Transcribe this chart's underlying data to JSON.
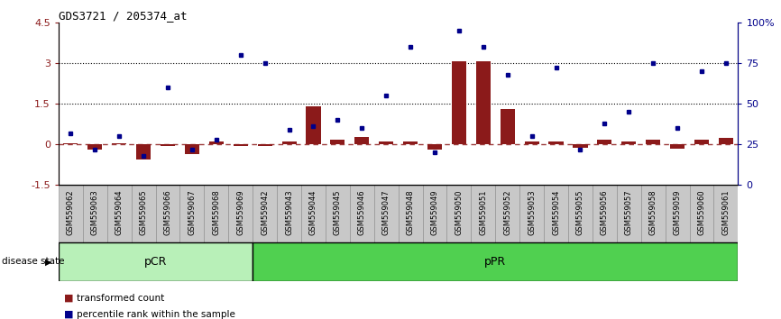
{
  "title": "GDS3721 / 205374_at",
  "samples": [
    "GSM559062",
    "GSM559063",
    "GSM559064",
    "GSM559065",
    "GSM559066",
    "GSM559067",
    "GSM559068",
    "GSM559069",
    "GSM559042",
    "GSM559043",
    "GSM559044",
    "GSM559045",
    "GSM559046",
    "GSM559047",
    "GSM559048",
    "GSM559049",
    "GSM559050",
    "GSM559051",
    "GSM559052",
    "GSM559053",
    "GSM559054",
    "GSM559055",
    "GSM559056",
    "GSM559057",
    "GSM559058",
    "GSM559059",
    "GSM559060",
    "GSM559061"
  ],
  "bar_values": [
    0.05,
    -0.2,
    0.05,
    -0.55,
    -0.05,
    -0.35,
    0.12,
    -0.05,
    -0.05,
    0.12,
    1.4,
    0.18,
    0.28,
    0.1,
    0.12,
    -0.18,
    3.05,
    3.05,
    1.3,
    0.12,
    0.12,
    -0.12,
    0.18,
    0.12,
    0.18,
    -0.15,
    0.18,
    0.25
  ],
  "dot_values": [
    32,
    22,
    30,
    18,
    60,
    22,
    28,
    80,
    75,
    34,
    36,
    40,
    35,
    55,
    85,
    20,
    95,
    85,
    68,
    30,
    72,
    22,
    38,
    45,
    75,
    35,
    70,
    75
  ],
  "pCR_count": 8,
  "pPR_count": 20,
  "bar_color": "#8B1A1A",
  "dot_color": "#00008B",
  "ylim_left": [
    -1.5,
    4.5
  ],
  "ylim_right": [
    0,
    100
  ],
  "yticks_left": [
    -1.5,
    0,
    1.5,
    3,
    4.5
  ],
  "yticks_right": [
    0,
    25,
    50,
    75,
    100
  ],
  "ytick_labels_left": [
    "-1.5",
    "0",
    "1.5",
    "3",
    "4.5"
  ],
  "ytick_labels_right": [
    "0",
    "25",
    "50",
    "75",
    "100%"
  ],
  "hlines": [
    1.5,
    3.0
  ],
  "zero_line_y": 0.0,
  "disease_state_label": "disease state",
  "legend_bar": "transformed count",
  "legend_dot": "percentile rank within the sample",
  "pCR_color": "#b8f0b8",
  "pPR_color": "#50d050",
  "tick_box_color": "#c8c8c8",
  "tick_box_edge_color": "#888888",
  "background_color": "#ffffff"
}
